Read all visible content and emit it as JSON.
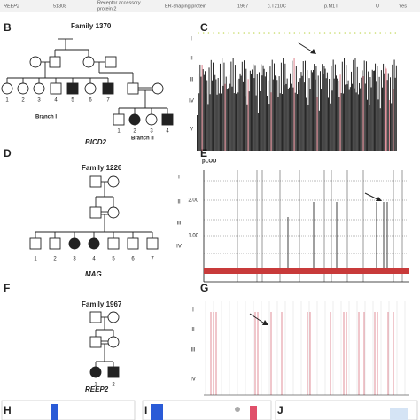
{
  "table_row": {
    "gene": "REEP2",
    "id": "51308",
    "description_line1": "Receptor accessory",
    "description_line2": "protein 2",
    "function": "ER-shaping protein",
    "family": "1967",
    "cdna": "c.T210C",
    "protein": "p.M1T",
    "status": "U",
    "segregation": "Yes"
  },
  "panel_labels": [
    "B",
    "C",
    "D",
    "E",
    "F",
    "G",
    "H",
    "I",
    "J"
  ],
  "pedigrees": [
    {
      "family": "Family 1370",
      "gene": "BICD2",
      "branches": [
        "Branch I",
        "Branch II"
      ],
      "generation3": [
        "1",
        "2",
        "3",
        "4",
        "5",
        "6",
        "7"
      ],
      "generation4": [
        "1",
        "2",
        "3",
        "4"
      ]
    },
    {
      "family": "Family 1226",
      "gene": "MAG",
      "generation3": [
        "1",
        "2",
        "3",
        "4",
        "5",
        "6",
        "7"
      ]
    },
    {
      "family": "Family 1967",
      "gene": "REEP2",
      "generation3": [
        "1",
        "2"
      ]
    }
  ],
  "plots": {
    "C": {
      "generations": [
        "I",
        "II",
        "III",
        "IV",
        "V"
      ]
    },
    "E": {
      "y_label": "pLOD",
      "ticks": [
        "2.00",
        "1.00"
      ],
      "generations": [
        "I",
        "II",
        "III",
        "IV"
      ]
    },
    "G": {
      "generations": [
        "I",
        "II",
        "III",
        "IV"
      ]
    }
  }
}
